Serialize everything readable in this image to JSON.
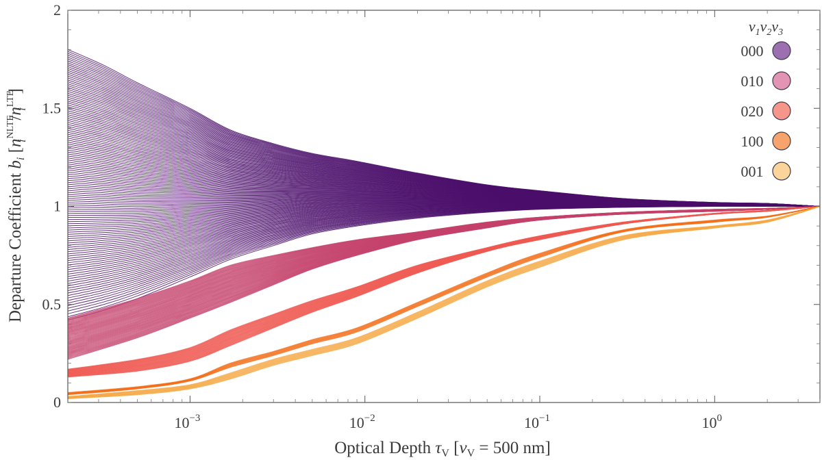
{
  "chart_data": {
    "type": "line",
    "xlabel": "Optical Depth τ_V [ν_V = 500 nm]",
    "xlabel_parts": {
      "main": "Optical Depth ",
      "tau": "τ",
      "tau_sub": "V",
      "bracket_open": " [",
      "nu": "ν",
      "nu_sub": "V",
      "rest": " = 500 nm]"
    },
    "ylabel": "Departure Coefficient b_i [n_i^NLTE / n_i^LTE]",
    "ylabel_parts": {
      "main": "Departure Coefficient ",
      "b": "b",
      "b_sub": "i",
      "bracket_open": " [",
      "n": "n",
      "nlte_sup": "NLTE",
      "i_sub": "i",
      "slash": "/",
      "lte_sup": "LTE",
      "bracket_close": "]"
    },
    "x_scale": "log",
    "xlim": [
      0.0002,
      4.0
    ],
    "ylim": [
      0,
      2
    ],
    "x_ticks": [
      {
        "value": 0.001,
        "base": "10",
        "exp": "−3"
      },
      {
        "value": 0.01,
        "base": "10",
        "exp": "−2"
      },
      {
        "value": 0.1,
        "base": "10",
        "exp": "−1"
      },
      {
        "value": 1,
        "base": "10",
        "exp": "0"
      }
    ],
    "y_ticks": [
      {
        "value": 0,
        "label": "0"
      },
      {
        "value": 0.5,
        "label": "0.5"
      },
      {
        "value": 1,
        "label": "1"
      },
      {
        "value": 1.5,
        "label": "1.5"
      },
      {
        "value": 2,
        "label": "2"
      }
    ],
    "grid": false,
    "legend_position": "top-right",
    "legend_title": "v1v2v3",
    "legend_title_parts": [
      "v",
      "1",
      "v",
      "2",
      "v",
      "3"
    ],
    "series": [
      {
        "name": "000",
        "color": "#9b6fb0",
        "line_color": "#4b0f6b",
        "line_count": 130,
        "note": "fan of lines from initial b_i between 0.42 and 1.80 converging to 1.0",
        "y_start_range": [
          0.42,
          1.8
        ],
        "x": [
          0.0002,
          0.00032,
          0.0005,
          0.001,
          0.0017,
          0.003,
          0.005,
          0.009,
          0.02,
          0.05,
          0.1,
          0.3,
          1,
          2,
          4
        ],
        "representative_upper": [
          1.8,
          1.72,
          1.63,
          1.5,
          1.39,
          1.32,
          1.27,
          1.23,
          1.17,
          1.11,
          1.08,
          1.04,
          1.02,
          1.015,
          1.0
        ],
        "representative_lower": [
          0.42,
          0.47,
          0.53,
          0.64,
          0.73,
          0.8,
          0.86,
          0.9,
          0.94,
          0.97,
          0.985,
          0.995,
          1.0,
          1.0,
          1.0
        ]
      },
      {
        "name": "010",
        "color": "#e393b3",
        "line_color": "#c4426c",
        "line_count": 60,
        "x": [
          0.0002,
          0.0005,
          0.001,
          0.0017,
          0.003,
          0.005,
          0.009,
          0.02,
          0.05,
          0.1,
          0.3,
          1,
          2,
          4
        ],
        "representative_upper": [
          0.43,
          0.53,
          0.62,
          0.7,
          0.75,
          0.79,
          0.83,
          0.87,
          0.92,
          0.945,
          0.97,
          0.985,
          0.99,
          1.0
        ],
        "representative_lower": [
          0.22,
          0.33,
          0.43,
          0.51,
          0.6,
          0.68,
          0.75,
          0.83,
          0.89,
          0.93,
          0.96,
          0.975,
          0.985,
          1.0
        ]
      },
      {
        "name": "020",
        "color": "#f6968a",
        "line_color": "#ef5a52",
        "line_count": 30,
        "x": [
          0.0002,
          0.0005,
          0.001,
          0.0017,
          0.003,
          0.005,
          0.009,
          0.02,
          0.05,
          0.1,
          0.3,
          1,
          2,
          4
        ],
        "representative_upper": [
          0.17,
          0.22,
          0.28,
          0.37,
          0.45,
          0.52,
          0.59,
          0.7,
          0.79,
          0.85,
          0.92,
          0.965,
          0.98,
          1.0
        ],
        "representative_lower": [
          0.13,
          0.16,
          0.21,
          0.29,
          0.38,
          0.46,
          0.54,
          0.66,
          0.77,
          0.83,
          0.91,
          0.96,
          0.975,
          1.0
        ]
      },
      {
        "name": "100",
        "color": "#f7a36e",
        "line_color": "#f26b15",
        "line_count": 6,
        "x": [
          0.0002,
          0.0005,
          0.001,
          0.0017,
          0.003,
          0.005,
          0.009,
          0.02,
          0.05,
          0.1,
          0.3,
          1,
          2,
          4
        ],
        "representative_upper": [
          0.05,
          0.08,
          0.12,
          0.2,
          0.26,
          0.32,
          0.38,
          0.51,
          0.66,
          0.76,
          0.88,
          0.93,
          0.95,
          1.0
        ],
        "representative_lower": [
          0.04,
          0.07,
          0.11,
          0.18,
          0.24,
          0.3,
          0.36,
          0.49,
          0.64,
          0.74,
          0.87,
          0.92,
          0.945,
          1.0
        ]
      },
      {
        "name": "001",
        "color": "#fad49a",
        "line_color": "#f5a843",
        "line_count": 8,
        "x": [
          0.0002,
          0.0005,
          0.001,
          0.0017,
          0.003,
          0.005,
          0.009,
          0.02,
          0.05,
          0.1,
          0.3,
          1,
          2,
          4
        ],
        "representative_upper": [
          0.03,
          0.06,
          0.09,
          0.15,
          0.22,
          0.27,
          0.33,
          0.46,
          0.62,
          0.72,
          0.85,
          0.9,
          0.93,
          1.0
        ],
        "representative_lower": [
          0.02,
          0.04,
          0.07,
          0.12,
          0.19,
          0.24,
          0.3,
          0.43,
          0.59,
          0.69,
          0.83,
          0.89,
          0.92,
          1.0
        ]
      }
    ]
  }
}
